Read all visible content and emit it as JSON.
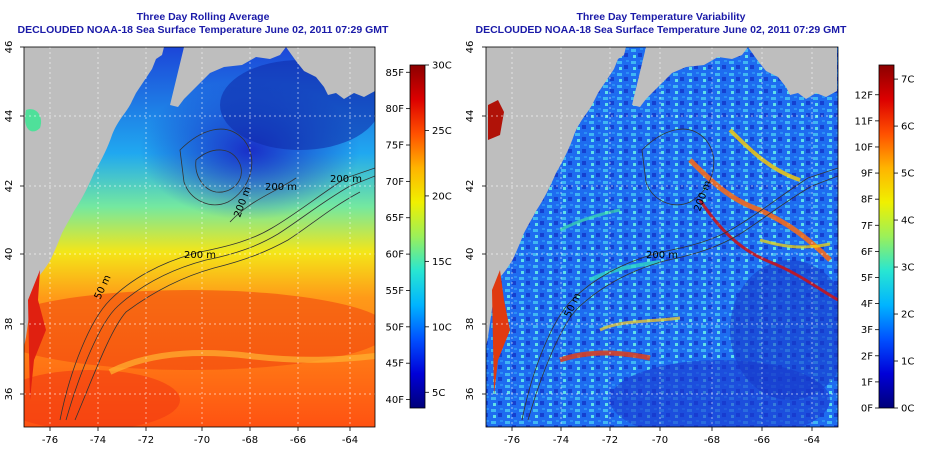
{
  "panels": [
    {
      "title": "Three Day Rolling Average",
      "subtitle": "DECLOUDED NOAA-18 Sea Surface Temperature June 02, 2011 07:29 GMT",
      "x_ticks": [
        "-76",
        "-74",
        "-72",
        "-70",
        "-68",
        "-66",
        "-64"
      ],
      "y_ticks": [
        "36",
        "38",
        "40",
        "42",
        "44",
        "46"
      ],
      "contour_labels": [
        "50 m",
        "200 m",
        "200 m",
        "200 m",
        "200 m"
      ],
      "colorbar": {
        "left_ticks": [
          "40F",
          "45F",
          "50F",
          "55F",
          "60F",
          "65F",
          "70F",
          "75F",
          "80F",
          "85F"
        ],
        "right_ticks": [
          "5C",
          "10C",
          "15C",
          "20C",
          "25C",
          "30C"
        ],
        "colors": [
          "#00007a",
          "#0000d8",
          "#0050ff",
          "#00b4ff",
          "#28e6d2",
          "#9bf05a",
          "#f0f000",
          "#ffb400",
          "#ff5000",
          "#dc0000",
          "#8c0000"
        ]
      }
    },
    {
      "title": "Three Day Temperature Variability",
      "subtitle": "DECLOUDED NOAA-18 Sea Surface Temperature June 02, 2011 07:29 GMT",
      "x_ticks": [
        "-76",
        "-74",
        "-72",
        "-70",
        "-68",
        "-66",
        "-64"
      ],
      "y_ticks": [
        "36",
        "38",
        "40",
        "42",
        "44",
        "46"
      ],
      "contour_labels": [
        "50 m",
        "200 m",
        "200 m"
      ],
      "colorbar": {
        "left_ticks": [
          "0F",
          "1F",
          "2F",
          "3F",
          "4F",
          "5F",
          "6F",
          "7F",
          "8F",
          "9F",
          "10F",
          "11F",
          "12F"
        ],
        "right_ticks": [
          "0C",
          "1C",
          "2C",
          "3C",
          "4C",
          "5C",
          "6C",
          "7C"
        ],
        "colors": [
          "#00007a",
          "#0000d8",
          "#0050ff",
          "#00b4ff",
          "#28e6d2",
          "#9bf05a",
          "#f0f000",
          "#ffb400",
          "#ff5000",
          "#dc0000",
          "#8c0000"
        ]
      }
    }
  ],
  "colors": {
    "title": "#1a1aa8",
    "land": "#bebebe",
    "grid": "#ffffff",
    "contour": "#222222"
  }
}
